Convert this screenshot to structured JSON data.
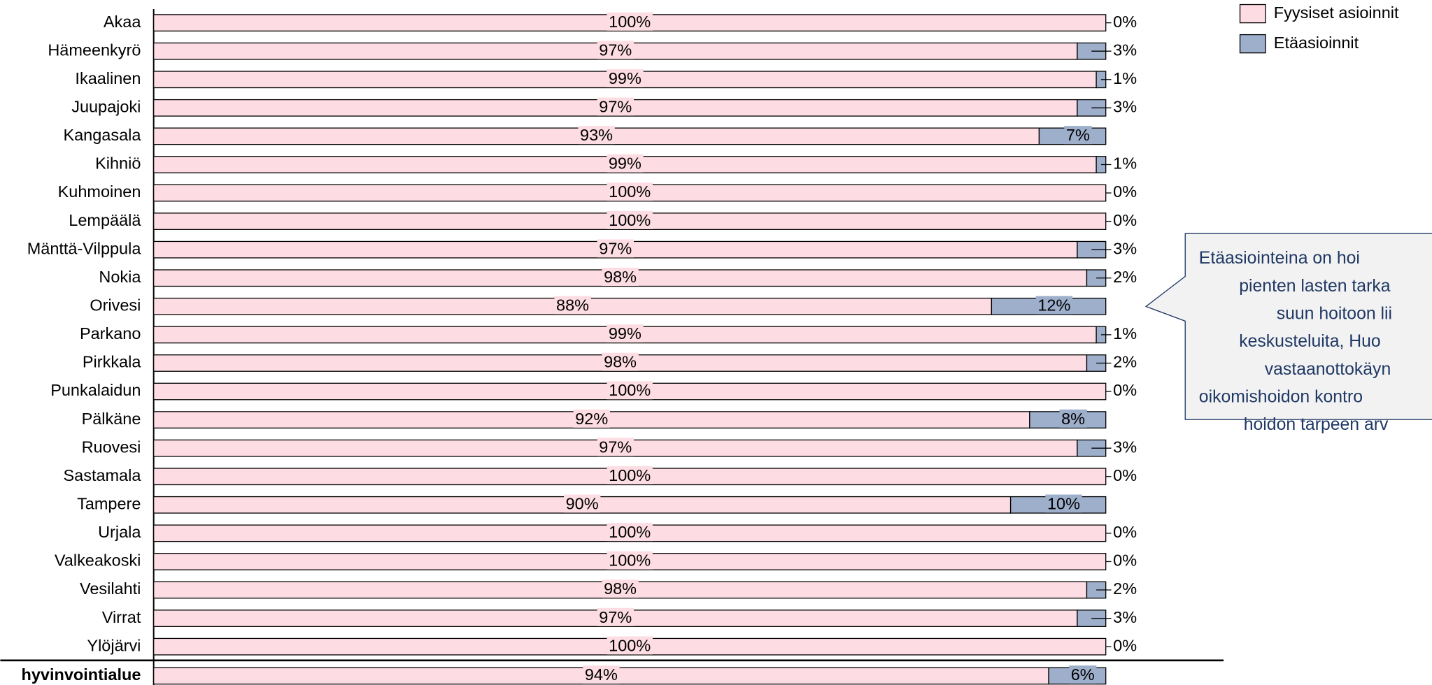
{
  "chart_data": {
    "type": "stacked-barh",
    "categories": [
      "Akaa",
      "Hämeenkyrö",
      "Ikaalinen",
      "Juupajoki",
      "Kangasala",
      "Kihniö",
      "Kuhmoinen",
      "Lempäälä",
      "Mänttä-Vilppula",
      "Nokia",
      "Orivesi",
      "Parkano",
      "Pirkkala",
      "Punkalaidun",
      "Pälkäne",
      "Ruovesi",
      "Sastamala",
      "Tampere",
      "Urjala",
      "Valkeakoski",
      "Vesilahti",
      "Virrat",
      "Ylöjärvi",
      "hyvinvointialue"
    ],
    "series": [
      {
        "name": "Fyysiset asioinnit",
        "color": "#fddde3",
        "values": [
          100,
          97,
          99,
          97,
          93,
          99,
          100,
          100,
          97,
          98,
          88,
          99,
          98,
          100,
          92,
          97,
          100,
          90,
          100,
          100,
          98,
          97,
          100,
          94
        ],
        "value_labels": [
          "100%",
          "97%",
          "99%",
          "97%",
          "93%",
          "99%",
          "100%",
          "100%",
          "97%",
          "98%",
          "88%",
          "99%",
          "98%",
          "100%",
          "92%",
          "97%",
          "100%",
          "90%",
          "100%",
          "100%",
          "98%",
          "97%",
          "100%",
          "94%"
        ]
      },
      {
        "name": "Etäasioinnit",
        "color": "#9eafcb",
        "values": [
          0,
          3,
          1,
          3,
          7,
          1,
          0,
          0,
          3,
          2,
          12,
          1,
          2,
          0,
          8,
          3,
          0,
          10,
          0,
          0,
          2,
          3,
          0,
          6
        ],
        "value_labels": [
          "0%",
          "3%",
          "1%",
          "3%",
          "7%",
          "1%",
          "0%",
          "0%",
          "3%",
          "2%",
          "12%",
          "1%",
          "2%",
          "0%",
          "8%",
          "3%",
          "0%",
          "10%",
          "0%",
          "0%",
          "2%",
          "3%",
          "0%",
          "6%"
        ]
      }
    ],
    "xlim": [
      0,
      100
    ],
    "legend": "upper right",
    "annotation": [
      "Etäasiointeina on hoi",
      "pienten lasten tarka",
      "suun hoitoon lii",
      "keskusteluita, Huo",
      "vastaanottokäyn",
      "oikomishoidon kontro",
      "hoidon tarpeen arv"
    ]
  }
}
